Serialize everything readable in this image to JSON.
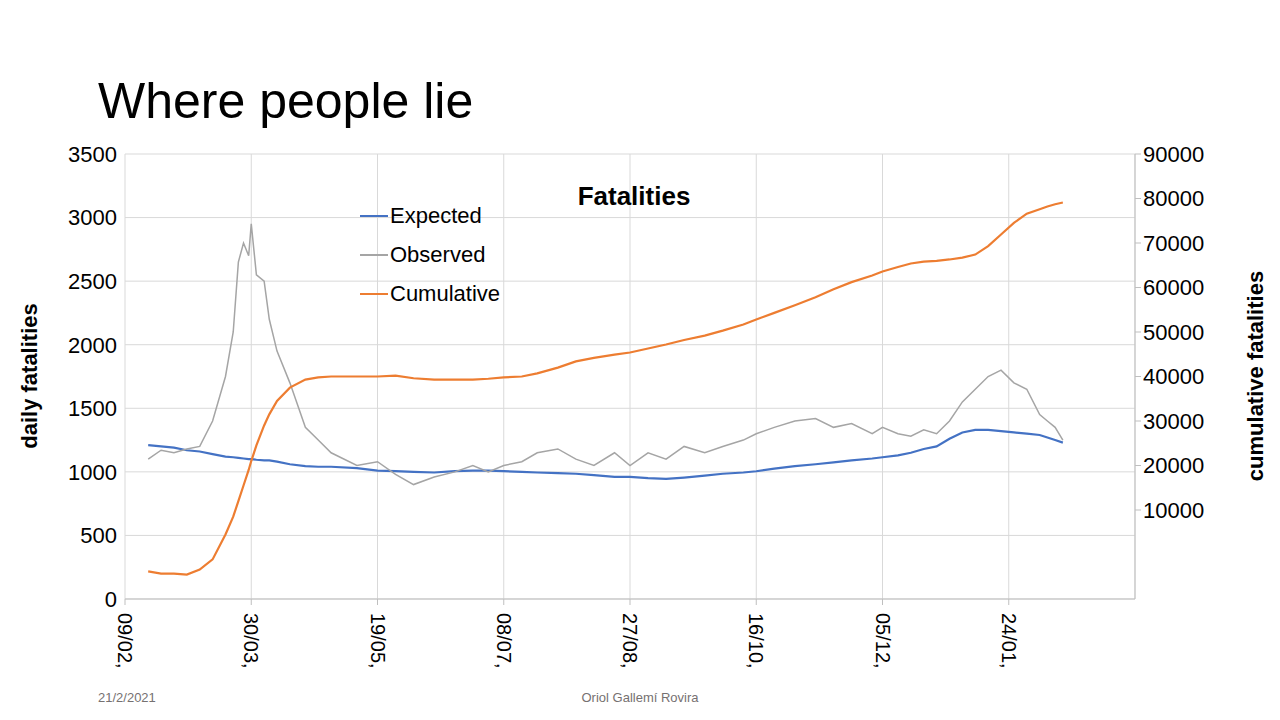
{
  "slide": {
    "title": "Where people lie",
    "date": "21/2/2021",
    "author": "Oriol Gallemí Rovira"
  },
  "chart_data": {
    "type": "line",
    "title": "Fatalities",
    "y_label": "daily fatalities",
    "y2_label": "cumulative fatalities",
    "x": [
      9,
      14,
      19,
      24,
      29,
      34,
      39,
      42,
      44,
      46,
      48,
      49,
      51,
      54,
      56,
      59,
      64,
      70,
      75,
      80,
      90,
      98,
      105,
      112,
      120,
      128,
      135,
      141,
      147,
      154,
      160,
      168,
      175,
      182,
      190,
      196,
      203,
      210,
      217,
      225,
      232,
      240,
      245,
      252,
      260,
      268,
      275,
      282,
      290,
      294,
      300,
      305,
      310,
      315,
      320,
      325,
      330,
      335,
      340,
      345,
      350,
      355,
      358,
      361,
      364
    ],
    "xlim": [
      0,
      392
    ],
    "xticks": [
      {
        "value": 0,
        "label": "09/02,"
      },
      {
        "value": 49,
        "label": "30/03,"
      },
      {
        "value": 98,
        "label": "19/05,"
      },
      {
        "value": 147,
        "label": "08/07,"
      },
      {
        "value": 196,
        "label": "27/08,"
      },
      {
        "value": 245,
        "label": "16/10,"
      },
      {
        "value": 294,
        "label": "05/12,"
      },
      {
        "value": 343,
        "label": "24/01,"
      }
    ],
    "ylim": [
      0,
      3500
    ],
    "yticks": [
      0,
      500,
      1000,
      1500,
      2000,
      2500,
      3000,
      3500
    ],
    "y2lim": [
      -10000,
      90000
    ],
    "y2ticks": [
      10000,
      20000,
      30000,
      40000,
      50000,
      60000,
      70000,
      80000,
      90000
    ],
    "grid": true,
    "legend": "top-left",
    "series": [
      {
        "name": "Expected",
        "color": "#4472c4",
        "values": [
          1210,
          1200,
          1190,
          1170,
          1160,
          1140,
          1120,
          1115,
          1110,
          1105,
          1100,
          1100,
          1095,
          1090,
          1090,
          1080,
          1060,
          1045,
          1040,
          1040,
          1030,
          1010,
          1005,
          1000,
          995,
          1005,
          1010,
          1010,
          1005,
          1000,
          995,
          990,
          985,
          975,
          960,
          960,
          950,
          945,
          955,
          970,
          985,
          995,
          1005,
          1025,
          1045,
          1060,
          1075,
          1090,
          1105,
          1115,
          1130,
          1150,
          1180,
          1200,
          1260,
          1310,
          1330,
          1330,
          1320,
          1310,
          1300,
          1290,
          1270,
          1250,
          1230
        ]
      },
      {
        "name": "Observed",
        "color": "#a5a5a5",
        "values": [
          1100,
          1170,
          1150,
          1180,
          1200,
          1400,
          1750,
          2100,
          2650,
          2800,
          2700,
          2950,
          2550,
          2500,
          2200,
          1950,
          1700,
          1350,
          1250,
          1150,
          1050,
          1080,
          980,
          900,
          960,
          1000,
          1050,
          1000,
          1050,
          1080,
          1150,
          1180,
          1100,
          1050,
          1150,
          1050,
          1150,
          1100,
          1200,
          1150,
          1200,
          1250,
          1300,
          1350,
          1400,
          1420,
          1350,
          1380,
          1300,
          1350,
          1300,
          1280,
          1330,
          1300,
          1400,
          1550,
          1650,
          1750,
          1800,
          1700,
          1650,
          1450,
          1400,
          1350,
          1250
        ]
      },
      {
        "name": "Cumulative",
        "color": "#ed7d31",
        "axis": "y2",
        "values": [
          -3800,
          -4300,
          -4300,
          -4500,
          -3400,
          -1100,
          4500,
          8500,
          12000,
          15500,
          19000,
          21000,
          24500,
          29000,
          31500,
          34500,
          37500,
          39300,
          39800,
          40000,
          40000,
          40000,
          40200,
          39600,
          39300,
          39300,
          39300,
          39500,
          39800,
          40000,
          40700,
          42000,
          43400,
          44200,
          44900,
          45400,
          46300,
          47200,
          48200,
          49200,
          50300,
          51700,
          52800,
          54300,
          56000,
          57800,
          59600,
          61200,
          62700,
          63600,
          64600,
          65400,
          65800,
          66000,
          66300,
          66700,
          67400,
          69300,
          71900,
          74500,
          76600,
          77600,
          78200,
          78700,
          79100
        ]
      }
    ]
  }
}
